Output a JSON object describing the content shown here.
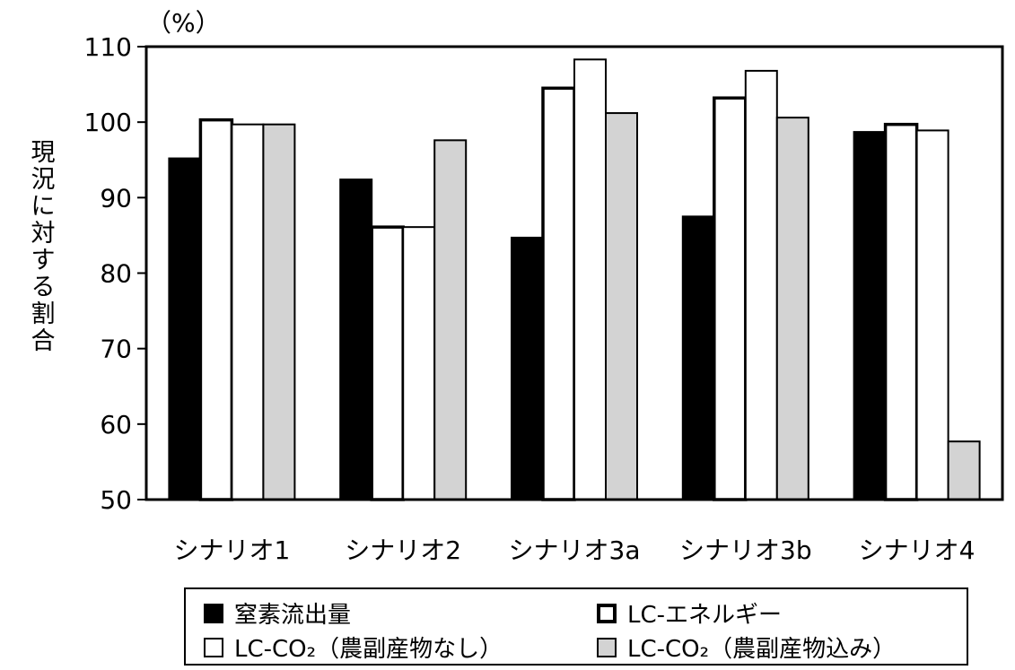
{
  "chart_data": {
    "type": "bar",
    "unit_label": "（%）",
    "ylabel": "現況に対する割合",
    "ylim": [
      50,
      110
    ],
    "yticks": [
      50,
      60,
      70,
      80,
      90,
      100,
      110
    ],
    "categories": [
      "シナリオ1",
      "シナリオ2",
      "シナリオ3a",
      "シナリオ3b",
      "シナリオ4"
    ],
    "series": [
      {
        "name": "窒素流出量",
        "values": [
          95.2,
          92.4,
          84.7,
          87.5,
          98.7
        ],
        "fill": "#000000",
        "stroke": "#000000"
      },
      {
        "name": "LC-エネルギー",
        "values": [
          100.3,
          86.1,
          104.5,
          103.2,
          99.7
        ],
        "fill": "#ffffff",
        "stroke": "#000000"
      },
      {
        "name": "LC-CO₂（農副産物なし）",
        "values": [
          99.7,
          86.1,
          108.3,
          106.8,
          98.9
        ],
        "fill": "#ffffff",
        "stroke": "#000000"
      },
      {
        "name": "LC-CO₂（農副産物込み）",
        "values": [
          99.7,
          97.6,
          101.2,
          100.6,
          57.7
        ],
        "fill": "#d3d3d3",
        "stroke": "#000000"
      }
    ],
    "grid": false,
    "legend_position": "bottom"
  }
}
